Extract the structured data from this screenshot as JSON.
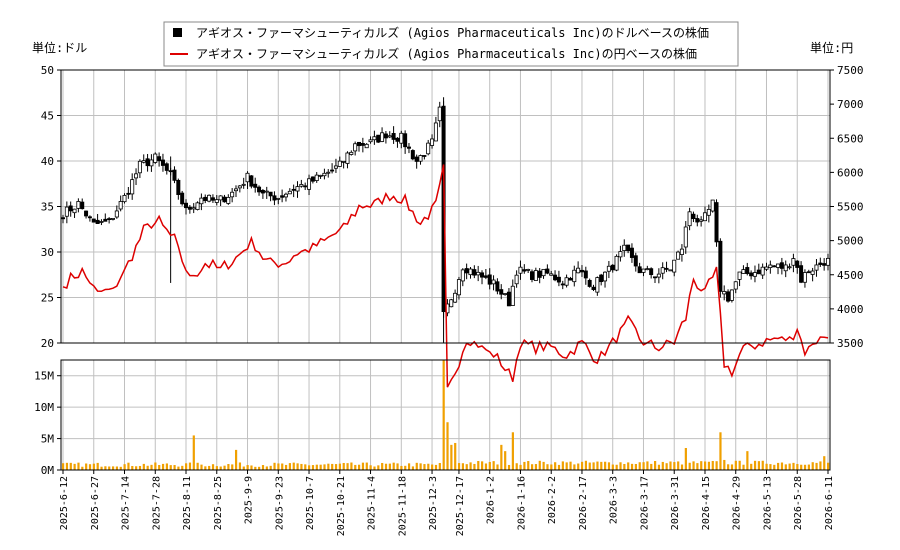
{
  "chart_data": {
    "type": "candlestick+line+bar",
    "legend": {
      "placement": "top-center",
      "entries": [
        {
          "label": "アギオス・ファーマシューティカルズ (Agios Pharmaceuticals Inc)のドルベースの株価",
          "color": "#000000",
          "marker": "square"
        },
        {
          "label": "アギオス・ファーマシューティカルズ (Agios Pharmaceuticals Inc)の円ベースの株価",
          "color": "#dd0000",
          "marker": "line"
        }
      ]
    },
    "left_unit_label": "単位:ドル",
    "right_unit_label": "単位:円",
    "price_axis_left": {
      "min": 20,
      "max": 50,
      "ticks": [
        20,
        25,
        30,
        35,
        40,
        45,
        50
      ]
    },
    "price_axis_right": {
      "min": 3500,
      "max": 7500,
      "ticks": [
        3500,
        4000,
        4500,
        5000,
        5500,
        6000,
        6500,
        7000,
        7500
      ]
    },
    "volume_axis": {
      "min": 0,
      "max": 17500000,
      "ticks": [
        0,
        5000000,
        10000000,
        15000000
      ],
      "tick_labels": [
        "0M",
        "5M",
        "10M",
        "15M"
      ]
    },
    "x_ticks": [
      "2025-6-12",
      "2025-6-27",
      "2025-7-14",
      "2025-7-28",
      "2025-8-11",
      "2025-8-25",
      "2025-9-9",
      "2025-9-23",
      "2025-10-7",
      "2025-10-21",
      "2025-11-4",
      "2025-11-18",
      "2025-12-3",
      "2025-12-17",
      "2026-1-2",
      "2026-1-16",
      "2026-2-2",
      "2026-2-17",
      "2026-3-3",
      "2026-3-17",
      "2026-3-31",
      "2026-4-15",
      "2026-4-29",
      "2026-5-13",
      "2026-5-28",
      "2026-6-11"
    ],
    "grid": true,
    "colors": {
      "usd_candle": "#000000",
      "jpy_line": "#dd0000",
      "volume": "#f0a000",
      "grid": "#c0c0c0"
    },
    "usd_anchors": [
      [
        0,
        34.2
      ],
      [
        4,
        35.3
      ],
      [
        8,
        33.0
      ],
      [
        12,
        33.3
      ],
      [
        16,
        36.0
      ],
      [
        20,
        39.5
      ],
      [
        24,
        40.3
      ],
      [
        28,
        38.4
      ],
      [
        32,
        34.5
      ],
      [
        36,
        36.0
      ],
      [
        40,
        35.5
      ],
      [
        44,
        36.5
      ],
      [
        48,
        38.2
      ],
      [
        52,
        36.3
      ],
      [
        56,
        36.0
      ],
      [
        60,
        37.0
      ],
      [
        64,
        37.6
      ],
      [
        68,
        38.5
      ],
      [
        72,
        39.5
      ],
      [
        76,
        41.8
      ],
      [
        80,
        42.0
      ],
      [
        84,
        43.0
      ],
      [
        88,
        42.5
      ],
      [
        92,
        40.0
      ],
      [
        96,
        42.0
      ],
      [
        98,
        45.5
      ],
      [
        99,
        23.0
      ],
      [
        102,
        26.0
      ],
      [
        104,
        28.5
      ],
      [
        108,
        27.5
      ],
      [
        112,
        26.5
      ],
      [
        116,
        24.5
      ],
      [
        118,
        28.0
      ],
      [
        122,
        27.5
      ],
      [
        126,
        27.6
      ],
      [
        130,
        26.8
      ],
      [
        134,
        28.0
      ],
      [
        138,
        26.3
      ],
      [
        142,
        28.0
      ],
      [
        146,
        30.2
      ],
      [
        150,
        28.0
      ],
      [
        154,
        27.5
      ],
      [
        158,
        28.2
      ],
      [
        161,
        30.5
      ],
      [
        163,
        34.5
      ],
      [
        166,
        33.0
      ],
      [
        169,
        35.3
      ],
      [
        171,
        26.0
      ],
      [
        173,
        25.0
      ],
      [
        176,
        27.5
      ],
      [
        180,
        27.8
      ],
      [
        184,
        28.5
      ],
      [
        188,
        28.3
      ],
      [
        190,
        29.5
      ],
      [
        192,
        27.0
      ],
      [
        194,
        28.0
      ],
      [
        196,
        28.4
      ],
      [
        198,
        29.0
      ]
    ],
    "spike_days": [
      [
        34,
        5.5
      ],
      [
        45,
        3.2
      ],
      [
        99,
        17.5
      ],
      [
        100,
        7.6
      ],
      [
        101,
        4.0
      ],
      [
        102,
        4.3
      ],
      [
        114,
        4.0
      ],
      [
        115,
        3.0
      ],
      [
        117,
        6.0
      ],
      [
        162,
        3.5
      ],
      [
        171,
        6.0
      ],
      [
        172,
        1.6
      ],
      [
        178,
        3.0
      ],
      [
        198,
        2.2
      ]
    ]
  }
}
